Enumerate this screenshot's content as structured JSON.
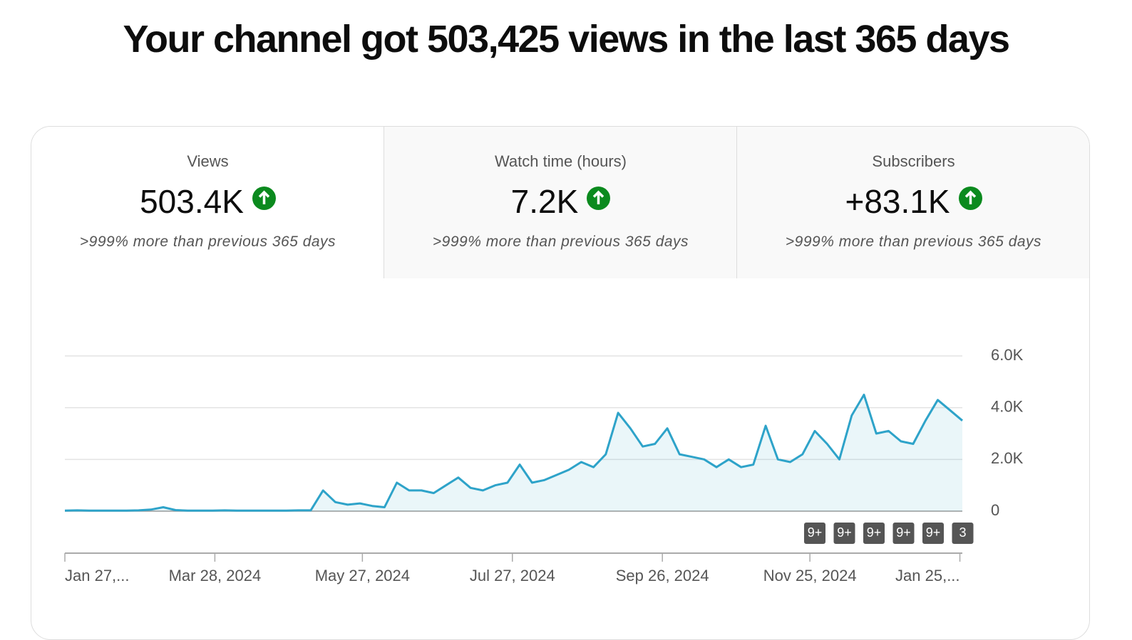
{
  "header": {
    "title": "Your channel got 503,425 views in the last 365 days"
  },
  "tabs": [
    {
      "label": "Views",
      "value": "503.4K",
      "comparison": ">999% more than previous 365 days"
    },
    {
      "label": "Watch time (hours)",
      "value": "7.2K",
      "comparison": ">999% more than previous 365 days"
    },
    {
      "label": "Subscribers",
      "value": "+83.1K",
      "comparison": ">999% more than previous 365 days"
    }
  ],
  "chart_data": {
    "type": "line",
    "x": [
      0,
      5,
      10,
      15,
      20,
      25,
      30,
      35,
      40,
      45,
      50,
      55,
      60,
      65,
      70,
      75,
      80,
      85,
      90,
      95,
      100,
      105,
      110,
      115,
      120,
      125,
      130,
      135,
      140,
      145,
      150,
      155,
      160,
      165,
      170,
      175,
      180,
      185,
      190,
      195,
      200,
      205,
      210,
      215,
      220,
      225,
      230,
      235,
      240,
      245,
      250,
      255,
      260,
      265,
      270,
      275,
      280,
      285,
      290,
      295,
      300,
      305,
      310,
      315,
      320,
      325,
      330,
      335,
      340,
      345,
      350,
      355,
      360,
      365
    ],
    "values": [
      20,
      30,
      20,
      20,
      20,
      20,
      30,
      60,
      150,
      40,
      20,
      20,
      20,
      30,
      20,
      20,
      20,
      20,
      20,
      30,
      30,
      800,
      350,
      250,
      300,
      200,
      150,
      1100,
      800,
      800,
      700,
      1000,
      1300,
      900,
      800,
      1000,
      1100,
      1800,
      1100,
      1200,
      1400,
      1600,
      1900,
      1700,
      2200,
      3800,
      3200,
      2500,
      2600,
      3200,
      2200,
      2100,
      2000,
      1700,
      2000,
      1700,
      1800,
      3300,
      2000,
      1900,
      2200,
      3100,
      2600,
      2000,
      3700,
      4500,
      3000,
      3100,
      2700,
      2600,
      3500,
      4300,
      3900,
      3500
    ],
    "color": "#2ea3c9",
    "xlim": [
      0,
      365
    ],
    "xticks": [
      {
        "value": 0,
        "label": "Jan 27,..."
      },
      {
        "value": 61,
        "label": "Mar 28, 2024"
      },
      {
        "value": 121,
        "label": "May 27, 2024"
      },
      {
        "value": 182,
        "label": "Jul 27, 2024"
      },
      {
        "value": 243,
        "label": "Sep 26, 2024"
      },
      {
        "value": 303,
        "label": "Nov 25, 2024"
      },
      {
        "value": 364,
        "label": "Jan 25,..."
      }
    ],
    "ylim": [
      0,
      6000
    ],
    "yticks": [
      0,
      {
        "value": 2000,
        "label": "2.0K"
      },
      {
        "value": 4000,
        "label": "4.0K"
      },
      {
        "value": 6000,
        "label": "6.0K"
      }
    ],
    "grid": true,
    "annotations": [
      "9+",
      "9+",
      "9+",
      "9+",
      "9+",
      "3"
    ]
  }
}
